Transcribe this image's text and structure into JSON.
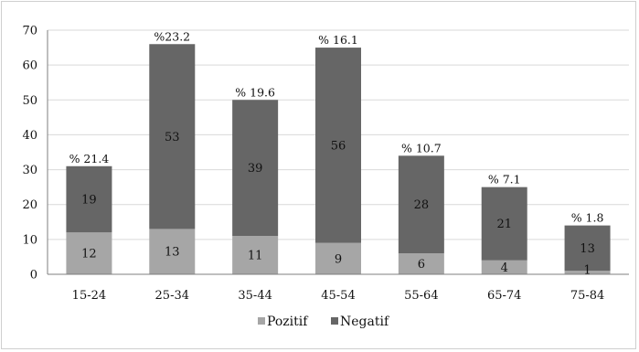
{
  "chart_data": {
    "type": "bar",
    "stacked": true,
    "categories": [
      "15-24",
      "25-34",
      "35-44",
      "45-54",
      "55-64",
      "65-74",
      "75-84"
    ],
    "series": [
      {
        "name": "Pozitif",
        "values": [
          12,
          13,
          11,
          9,
          6,
          4,
          1
        ],
        "color": "#a6a6a6"
      },
      {
        "name": "Negatif",
        "values": [
          19,
          53,
          39,
          56,
          28,
          21,
          13
        ],
        "color": "#666666"
      }
    ],
    "annotations": [
      "% 21.4",
      "%23.2",
      "% 19.6",
      "% 16.1",
      "% 10.7",
      "% 7.1",
      "% 1.8"
    ],
    "yticks": [
      "0",
      "10",
      "20",
      "30",
      "40",
      "50",
      "60",
      "70"
    ],
    "ylim": [
      0,
      70
    ],
    "grid": true,
    "legend_position": "bottom-center",
    "title": "",
    "xlabel": "",
    "ylabel": ""
  }
}
